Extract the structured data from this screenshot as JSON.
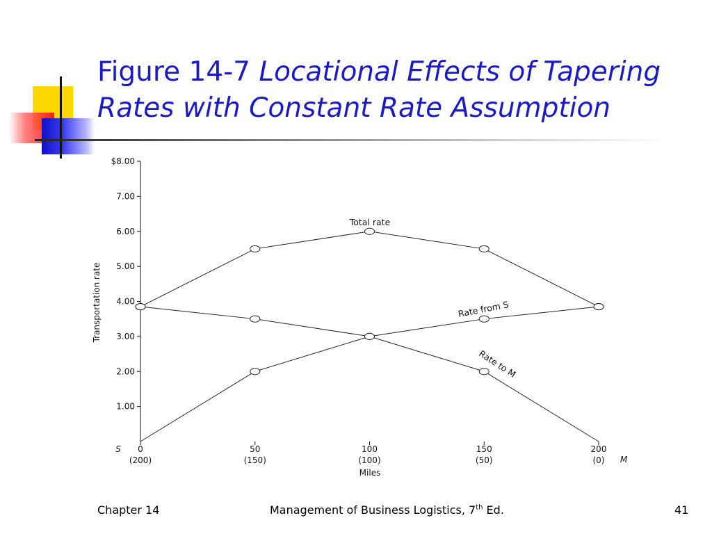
{
  "slide": {
    "title_prefix": "Figure 14-7",
    "title_italic": "Locational Effects of Tapering Rates with Constant Rate Assumption",
    "footer_left": "Chapter 14",
    "footer_center_main": "Management of Business Logistics, 7",
    "footer_center_sup": "th",
    "footer_center_tail": " Ed.",
    "footer_right": "41"
  },
  "chart_data": {
    "type": "line",
    "ylabel": "Transportation rate",
    "xlabel": "Miles",
    "ylim": [
      0,
      8
    ],
    "xlim": [
      0,
      200
    ],
    "y_ticks": [
      "$8.00",
      "7.00",
      "6.00",
      "5.00",
      "4.00",
      "3.00",
      "2.00",
      "1.00"
    ],
    "x": [
      0,
      50,
      100,
      150,
      200
    ],
    "x_tick_labels": [
      "0",
      "50",
      "100",
      "150",
      "200"
    ],
    "x_secondary_labels": [
      "(200)",
      "(150)",
      "(100)",
      "(50)",
      "(0)"
    ],
    "x_left_marker": "S",
    "x_right_marker": "M",
    "series": [
      {
        "name": "Total rate",
        "values": [
          3.85,
          5.5,
          6.0,
          5.5,
          3.85
        ]
      },
      {
        "name": "Rate from S",
        "values": [
          0,
          2.0,
          3.0,
          3.5,
          3.85
        ]
      },
      {
        "name": "Rate to M",
        "values": [
          3.85,
          3.5,
          3.0,
          2.0,
          0
        ]
      }
    ]
  }
}
